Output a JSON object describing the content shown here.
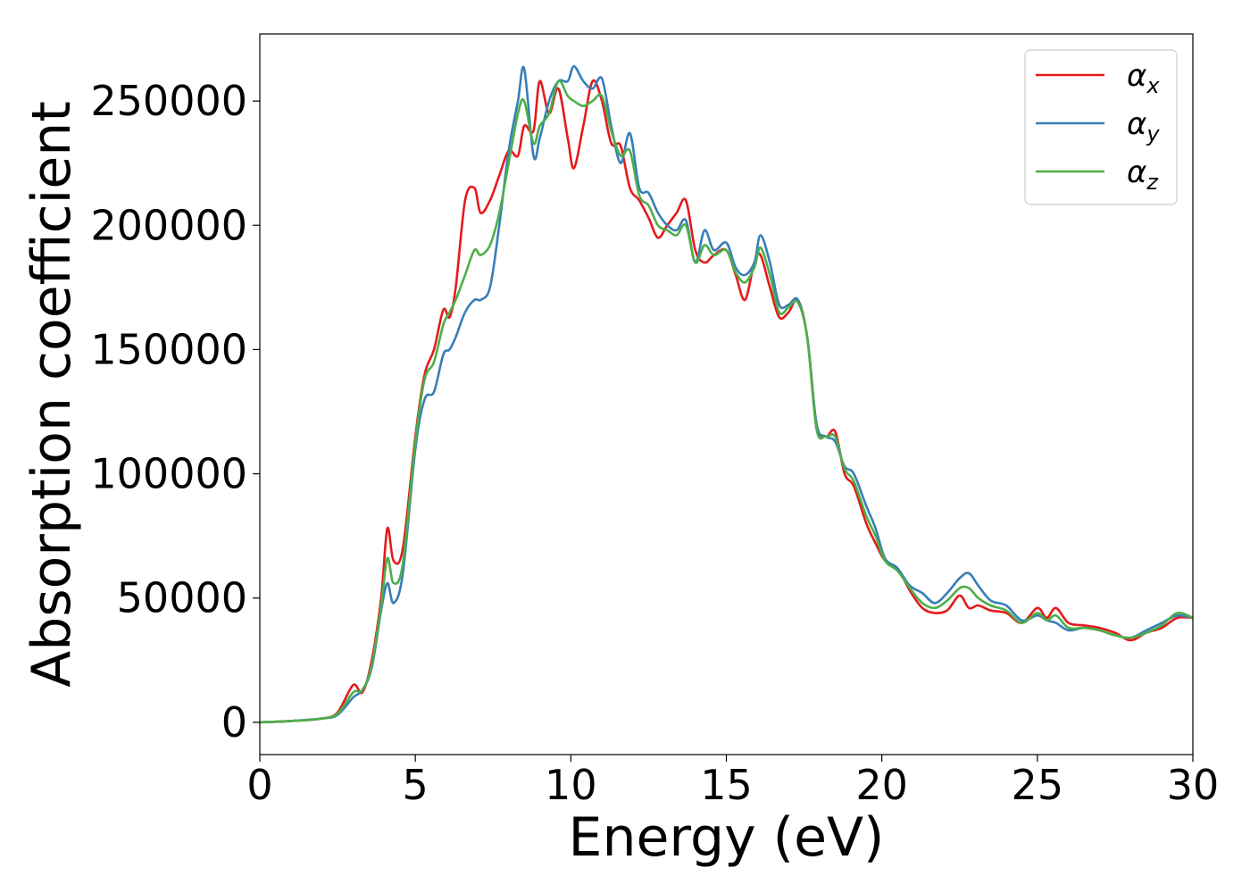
{
  "chart_data": {
    "type": "line",
    "xlabel": "Energy (eV)",
    "ylabel": "Absorption coefficient",
    "xlim": [
      0,
      30
    ],
    "ylim": [
      -13000,
      277000
    ],
    "xticks": [
      0,
      5,
      10,
      15,
      20,
      25,
      30
    ],
    "xtick_labels": [
      "0",
      "5",
      "10",
      "15",
      "20",
      "25",
      "30"
    ],
    "yticks": [
      0,
      50000,
      100000,
      150000,
      200000,
      250000
    ],
    "ytick_labels": [
      "0",
      "50000",
      "100000",
      "150000",
      "200000",
      "250000"
    ],
    "grid": false,
    "legend_position": "top-right",
    "series": [
      {
        "name": "α_x",
        "legend_symbol": "α",
        "legend_subscript": "x",
        "color": "#e41a1c",
        "x": [
          0,
          1,
          2,
          2.5,
          3,
          3.3,
          3.6,
          3.9,
          4.1,
          4.3,
          4.6,
          5,
          5.3,
          5.6,
          5.9,
          6.1,
          6.3,
          6.6,
          6.9,
          7.1,
          7.4,
          7.7,
          8,
          8.3,
          8.5,
          8.8,
          9,
          9.3,
          9.6,
          9.9,
          10.1,
          10.4,
          10.7,
          11,
          11.3,
          11.6,
          11.9,
          12.2,
          12.5,
          12.8,
          13.1,
          13.4,
          13.7,
          14,
          14.3,
          14.6,
          15,
          15.3,
          15.6,
          15.9,
          16.1,
          16.4,
          16.7,
          17,
          17.3,
          17.6,
          17.9,
          18.2,
          18.5,
          18.8,
          19.1,
          19.5,
          19.8,
          20.1,
          20.5,
          20.9,
          21.3,
          21.7,
          22.1,
          22.5,
          22.8,
          23.1,
          23.5,
          24,
          24.5,
          25,
          25.3,
          25.6,
          26,
          26.5,
          27,
          27.5,
          28,
          28.5,
          29,
          29.5,
          30
        ],
        "y": [
          0,
          500,
          1500,
          4000,
          15000,
          12000,
          25000,
          50000,
          78000,
          65000,
          70000,
          115000,
          140000,
          150000,
          166000,
          163000,
          175000,
          210000,
          215000,
          205000,
          210000,
          220000,
          230000,
          228000,
          240000,
          238000,
          258000,
          245000,
          255000,
          235000,
          223000,
          240000,
          258000,
          250000,
          233000,
          232000,
          215000,
          210000,
          203000,
          195000,
          200000,
          205000,
          210000,
          190000,
          185000,
          188000,
          190000,
          180000,
          170000,
          185000,
          188000,
          175000,
          163000,
          165000,
          170000,
          155000,
          120000,
          115000,
          117000,
          100000,
          95000,
          80000,
          72000,
          65000,
          62000,
          53000,
          46000,
          44000,
          45000,
          51000,
          46000,
          47000,
          45000,
          44000,
          40000,
          46000,
          42000,
          46000,
          40000,
          39000,
          38000,
          36000,
          33000,
          36000,
          38000,
          42000,
          42000
        ]
      },
      {
        "name": "α_y",
        "legend_symbol": "α",
        "legend_subscript": "y",
        "color": "#377eb8",
        "x": [
          0,
          1,
          2,
          2.5,
          3,
          3.3,
          3.6,
          3.9,
          4.1,
          4.3,
          4.6,
          5,
          5.3,
          5.6,
          5.9,
          6.1,
          6.3,
          6.6,
          6.9,
          7.1,
          7.4,
          7.7,
          8,
          8.3,
          8.5,
          8.8,
          9,
          9.3,
          9.6,
          9.9,
          10.1,
          10.4,
          10.7,
          11,
          11.3,
          11.6,
          11.9,
          12.2,
          12.5,
          12.8,
          13.1,
          13.4,
          13.7,
          14,
          14.3,
          14.6,
          15,
          15.3,
          15.6,
          15.9,
          16.1,
          16.4,
          16.7,
          17,
          17.3,
          17.6,
          17.9,
          18.2,
          18.5,
          18.8,
          19.1,
          19.5,
          19.8,
          20.1,
          20.5,
          20.9,
          21.3,
          21.7,
          22.1,
          22.5,
          22.8,
          23.1,
          23.5,
          24,
          24.5,
          25,
          25.3,
          25.6,
          26,
          26.5,
          27,
          27.5,
          28,
          28.5,
          29,
          29.5,
          30
        ],
        "y": [
          0,
          500,
          1500,
          3000,
          10000,
          13000,
          22000,
          45000,
          56000,
          48000,
          60000,
          110000,
          130000,
          133000,
          148000,
          150000,
          155000,
          165000,
          170000,
          170000,
          175000,
          200000,
          230000,
          250000,
          263000,
          228000,
          235000,
          250000,
          258000,
          258000,
          264000,
          258000,
          255000,
          259000,
          240000,
          225000,
          237000,
          215000,
          213000,
          205000,
          200000,
          198000,
          202000,
          185000,
          198000,
          190000,
          193000,
          183000,
          180000,
          185000,
          196000,
          185000,
          168000,
          168000,
          170000,
          155000,
          120000,
          115000,
          113000,
          103000,
          100000,
          87000,
          78000,
          66000,
          62000,
          55000,
          52000,
          48000,
          52000,
          58000,
          60000,
          55000,
          49000,
          47000,
          41000,
          43000,
          41000,
          40000,
          37000,
          38000,
          37000,
          35000,
          34000,
          37000,
          40000,
          43000,
          42000
        ]
      },
      {
        "name": "α_z",
        "legend_symbol": "α",
        "legend_subscript": "z",
        "color": "#4daf4a",
        "x": [
          0,
          1,
          2,
          2.5,
          3,
          3.3,
          3.6,
          3.9,
          4.1,
          4.3,
          4.6,
          5,
          5.3,
          5.6,
          5.9,
          6.1,
          6.3,
          6.6,
          6.9,
          7.1,
          7.4,
          7.7,
          8,
          8.3,
          8.5,
          8.8,
          9,
          9.3,
          9.6,
          9.9,
          10.1,
          10.4,
          10.7,
          11,
          11.3,
          11.6,
          11.9,
          12.2,
          12.5,
          12.8,
          13.1,
          13.4,
          13.7,
          14,
          14.3,
          14.6,
          15,
          15.3,
          15.6,
          15.9,
          16.1,
          16.4,
          16.7,
          17,
          17.3,
          17.6,
          17.9,
          18.2,
          18.5,
          18.8,
          19.1,
          19.5,
          19.8,
          20.1,
          20.5,
          20.9,
          21.3,
          21.7,
          22.1,
          22.5,
          22.8,
          23.1,
          23.5,
          24,
          24.5,
          25,
          25.3,
          25.6,
          26,
          26.5,
          27,
          27.5,
          28,
          28.5,
          29,
          29.5,
          30
        ],
        "y": [
          0,
          500,
          1500,
          3500,
          12000,
          13000,
          23000,
          47000,
          66000,
          56000,
          64000,
          113000,
          138000,
          145000,
          160000,
          165000,
          170000,
          180000,
          190000,
          188000,
          192000,
          205000,
          225000,
          245000,
          250000,
          233000,
          240000,
          245000,
          258000,
          252000,
          250000,
          248000,
          250000,
          252000,
          238000,
          228000,
          230000,
          212000,
          208000,
          200000,
          198000,
          196000,
          200000,
          185000,
          192000,
          188000,
          190000,
          181000,
          177000,
          183000,
          191000,
          180000,
          165000,
          167000,
          169000,
          155000,
          118000,
          115000,
          115000,
          102000,
          97000,
          83000,
          75000,
          65000,
          61000,
          54000,
          48000,
          46000,
          49000,
          54000,
          54000,
          50000,
          47000,
          45000,
          40000,
          44000,
          41000,
          43000,
          38000,
          38000,
          37000,
          35000,
          34000,
          36000,
          39000,
          44000,
          42000
        ]
      }
    ]
  }
}
